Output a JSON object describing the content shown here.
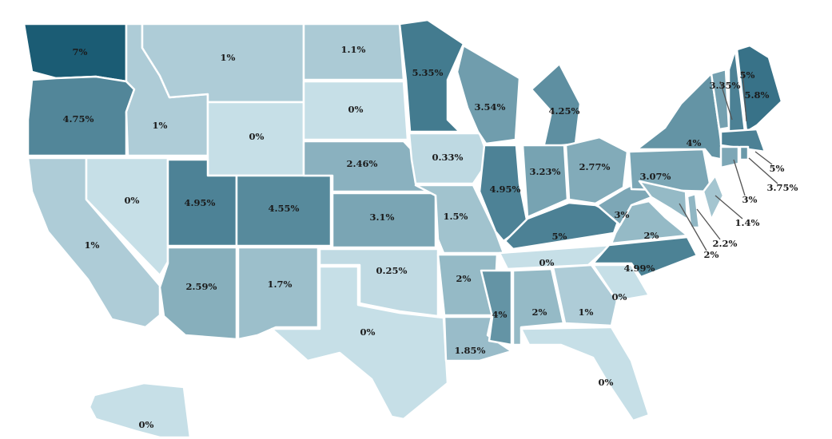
{
  "chart_data": {
    "type": "choropleth",
    "color_scale": {
      "min_value": 0,
      "max_value": 7,
      "min_color": "#c6dfe7",
      "max_color": "#1b5c74"
    },
    "states": [
      {
        "state": "WA",
        "value": 7,
        "label": "7%"
      },
      {
        "state": "OR",
        "value": 4.75,
        "label": "4.75%"
      },
      {
        "state": "CA",
        "value": 1,
        "label": "1%"
      },
      {
        "state": "NV",
        "value": 0,
        "label": "0%"
      },
      {
        "state": "ID",
        "value": 1,
        "label": "1%"
      },
      {
        "state": "MT",
        "value": 1,
        "label": "1%"
      },
      {
        "state": "WY",
        "value": 0,
        "label": "0%"
      },
      {
        "state": "UT",
        "value": 4.95,
        "label": "4.95%"
      },
      {
        "state": "CO",
        "value": 4.55,
        "label": "4.55%"
      },
      {
        "state": "AZ",
        "value": 2.59,
        "label": "2.59%"
      },
      {
        "state": "NM",
        "value": 1.7,
        "label": "1.7%"
      },
      {
        "state": "ND",
        "value": 1.1,
        "label": "1.1%"
      },
      {
        "state": "SD",
        "value": 0,
        "label": "0%"
      },
      {
        "state": "NE",
        "value": 2.46,
        "label": "2.46%"
      },
      {
        "state": "KS",
        "value": 3.1,
        "label": "3.1%"
      },
      {
        "state": "OK",
        "value": 0.25,
        "label": "0.25%"
      },
      {
        "state": "TX",
        "value": 0,
        "label": "0%"
      },
      {
        "state": "MN",
        "value": 5.35,
        "label": "5.35%"
      },
      {
        "state": "IA",
        "value": 0.33,
        "label": "0.33%"
      },
      {
        "state": "MO",
        "value": 1.5,
        "label": "1.5%"
      },
      {
        "state": "AR",
        "value": 2,
        "label": "2%"
      },
      {
        "state": "LA",
        "value": 1.85,
        "label": "1.85%"
      },
      {
        "state": "WI",
        "value": 3.54,
        "label": "3.54%"
      },
      {
        "state": "IL",
        "value": 4.95,
        "label": "4.95%"
      },
      {
        "state": "MI",
        "value": 4.25,
        "label": "4.25%"
      },
      {
        "state": "IN",
        "value": 3.23,
        "label": "3.23%"
      },
      {
        "state": "OH",
        "value": 2.77,
        "label": "2.77%"
      },
      {
        "state": "KY",
        "value": 5,
        "label": "5%"
      },
      {
        "state": "TN",
        "value": 0,
        "label": "0%"
      },
      {
        "state": "MS",
        "value": 4,
        "label": "4%"
      },
      {
        "state": "AL",
        "value": 2,
        "label": "2%"
      },
      {
        "state": "GA",
        "value": 1,
        "label": "1%"
      },
      {
        "state": "FL",
        "value": 0,
        "label": "0%"
      },
      {
        "state": "SC",
        "value": 0,
        "label": "0%"
      },
      {
        "state": "NC",
        "value": 4.99,
        "label": "4.99%"
      },
      {
        "state": "VA",
        "value": 2,
        "label": "2%"
      },
      {
        "state": "WV",
        "value": 3,
        "label": "3%"
      },
      {
        "state": "PA",
        "value": 3.07,
        "label": "3.07%"
      },
      {
        "state": "NY",
        "value": 4,
        "label": "4%"
      },
      {
        "state": "VT",
        "value": 3.35,
        "label": "3.35%"
      },
      {
        "state": "NH",
        "value": 5,
        "label": "5%"
      },
      {
        "state": "ME",
        "value": 5.8,
        "label": "5.8%"
      },
      {
        "state": "MA",
        "value": 5,
        "label": "5%"
      },
      {
        "state": "RI",
        "value": 3.75,
        "label": "3.75%"
      },
      {
        "state": "CT",
        "value": 3,
        "label": "3%"
      },
      {
        "state": "NJ",
        "value": 1.4,
        "label": "1.4%"
      },
      {
        "state": "DE",
        "value": 2.2,
        "label": "2.2%"
      },
      {
        "state": "MD",
        "value": 2,
        "label": "2%"
      },
      {
        "state": "AK",
        "value": 0,
        "label": "0%"
      }
    ]
  }
}
